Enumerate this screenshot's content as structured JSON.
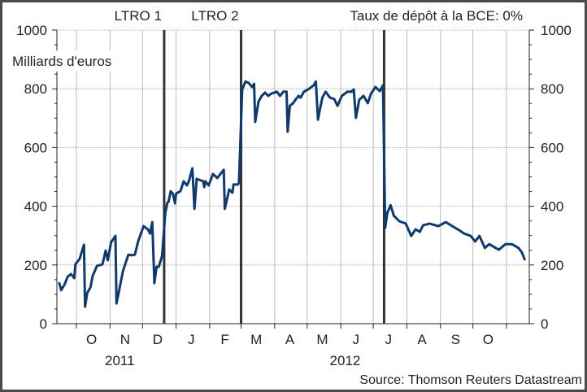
{
  "chart_data": {
    "type": "line",
    "title": "",
    "ylabel": "Milliards d'euros",
    "source": "Source: Thomson Reuters Datastream",
    "ylim": [
      0,
      1000
    ],
    "yticks": [
      0,
      200,
      400,
      600,
      800,
      1000
    ],
    "xlim": [
      "2011-09-13",
      "2012-11-22"
    ],
    "grid": true,
    "colors": {
      "series": "#0f3a6b",
      "event_lines": "#333333"
    },
    "month_labels": [
      {
        "label": "O",
        "month": "2011-10"
      },
      {
        "label": "N",
        "month": "2011-11"
      },
      {
        "label": "D",
        "month": "2011-12"
      },
      {
        "label": "J",
        "month": "2012-01"
      },
      {
        "label": "F",
        "month": "2012-02"
      },
      {
        "label": "M",
        "month": "2012-03"
      },
      {
        "label": "A",
        "month": "2012-04"
      },
      {
        "label": "M",
        "month": "2012-05"
      },
      {
        "label": "J",
        "month": "2012-06"
      },
      {
        "label": "J",
        "month": "2012-07"
      },
      {
        "label": "A",
        "month": "2012-08"
      },
      {
        "label": "S",
        "month": "2012-09"
      },
      {
        "label": "O",
        "month": "2012-10"
      }
    ],
    "year_labels": [
      {
        "label": "2011",
        "date": "2011-11-10"
      },
      {
        "label": "2012",
        "date": "2012-06-05"
      }
    ],
    "events": [
      {
        "label": "LTRO 1",
        "date": "2011-12-21"
      },
      {
        "label": "LTRO 2",
        "date": "2012-03-01"
      },
      {
        "label": "Taux de dépôt à la BCE: 0%",
        "date": "2012-07-11"
      }
    ],
    "series": [
      {
        "points": [
          [
            "2011-09-15",
            141
          ],
          [
            "2011-09-17",
            114
          ],
          [
            "2011-09-20",
            133
          ],
          [
            "2011-09-23",
            160
          ],
          [
            "2011-09-26",
            169
          ],
          [
            "2011-09-29",
            155
          ],
          [
            "2011-09-30",
            202
          ],
          [
            "2011-10-04",
            221
          ],
          [
            "2011-10-08",
            269
          ],
          [
            "2011-10-09",
            58
          ],
          [
            "2011-10-11",
            105
          ],
          [
            "2011-10-14",
            124
          ],
          [
            "2011-10-16",
            163
          ],
          [
            "2011-10-20",
            197
          ],
          [
            "2011-10-25",
            202
          ],
          [
            "2011-10-28",
            249
          ],
          [
            "2011-10-30",
            216
          ],
          [
            "2011-11-02",
            277
          ],
          [
            "2011-11-06",
            299
          ],
          [
            "2011-11-07",
            69
          ],
          [
            "2011-11-10",
            124
          ],
          [
            "2011-11-13",
            180
          ],
          [
            "2011-11-18",
            235
          ],
          [
            "2011-11-21",
            233
          ],
          [
            "2011-11-24",
            235
          ],
          [
            "2011-11-27",
            280
          ],
          [
            "2011-12-02",
            332
          ],
          [
            "2011-12-06",
            321
          ],
          [
            "2011-12-08",
            307
          ],
          [
            "2011-12-10",
            346
          ],
          [
            "2011-12-12",
            138
          ],
          [
            "2011-12-14",
            194
          ],
          [
            "2011-12-16",
            194
          ],
          [
            "2011-12-19",
            230
          ],
          [
            "2011-12-22",
            377
          ],
          [
            "2011-12-24",
            413
          ],
          [
            "2011-12-25",
            415
          ],
          [
            "2011-12-27",
            451
          ],
          [
            "2011-12-29",
            443
          ],
          [
            "2011-12-31",
            410
          ],
          [
            "2012-01-01",
            443
          ],
          [
            "2012-01-05",
            451
          ],
          [
            "2012-01-08",
            485
          ],
          [
            "2012-01-11",
            471
          ],
          [
            "2012-01-13",
            488
          ],
          [
            "2012-01-16",
            529
          ],
          [
            "2012-01-18",
            391
          ],
          [
            "2012-01-20",
            493
          ],
          [
            "2012-01-26",
            485
          ],
          [
            "2012-01-27",
            465
          ],
          [
            "2012-01-28",
            485
          ],
          [
            "2012-01-31",
            471
          ],
          [
            "2012-02-04",
            510
          ],
          [
            "2012-02-08",
            496
          ],
          [
            "2012-02-14",
            524
          ],
          [
            "2012-02-15",
            391
          ],
          [
            "2012-02-19",
            457
          ],
          [
            "2012-02-22",
            446
          ],
          [
            "2012-02-23",
            474
          ],
          [
            "2012-02-27",
            474
          ],
          [
            "2012-02-28",
            479
          ],
          [
            "2012-03-02",
            798
          ],
          [
            "2012-03-05",
            825
          ],
          [
            "2012-03-08",
            820
          ],
          [
            "2012-03-11",
            806
          ],
          [
            "2012-03-13",
            817
          ],
          [
            "2012-03-14",
            687
          ],
          [
            "2012-03-17",
            756
          ],
          [
            "2012-03-20",
            776
          ],
          [
            "2012-03-23",
            787
          ],
          [
            "2012-03-26",
            776
          ],
          [
            "2012-03-29",
            784
          ],
          [
            "2012-04-03",
            790
          ],
          [
            "2012-04-06",
            776
          ],
          [
            "2012-04-09",
            790
          ],
          [
            "2012-04-12",
            790
          ],
          [
            "2012-04-13",
            654
          ],
          [
            "2012-04-15",
            742
          ],
          [
            "2012-04-18",
            751
          ],
          [
            "2012-04-20",
            762
          ],
          [
            "2012-04-23",
            776
          ],
          [
            "2012-04-25",
            770
          ],
          [
            "2012-04-28",
            790
          ],
          [
            "2012-05-02",
            798
          ],
          [
            "2012-05-07",
            812
          ],
          [
            "2012-05-09",
            825
          ],
          [
            "2012-05-11",
            695
          ],
          [
            "2012-05-13",
            734
          ],
          [
            "2012-05-15",
            770
          ],
          [
            "2012-05-18",
            790
          ],
          [
            "2012-05-22",
            770
          ],
          [
            "2012-05-26",
            765
          ],
          [
            "2012-05-29",
            742
          ],
          [
            "2012-06-02",
            776
          ],
          [
            "2012-06-07",
            790
          ],
          [
            "2012-06-11",
            790
          ],
          [
            "2012-06-13",
            798
          ],
          [
            "2012-06-15",
            701
          ],
          [
            "2012-06-18",
            762
          ],
          [
            "2012-06-22",
            776
          ],
          [
            "2012-06-26",
            751
          ],
          [
            "2012-06-29",
            784
          ],
          [
            "2012-07-03",
            806
          ],
          [
            "2012-07-07",
            792
          ],
          [
            "2012-07-10",
            812
          ],
          [
            "2012-07-12",
            327
          ],
          [
            "2012-07-14",
            377
          ],
          [
            "2012-07-17",
            404
          ],
          [
            "2012-07-20",
            368
          ],
          [
            "2012-07-25",
            349
          ],
          [
            "2012-07-31",
            341
          ],
          [
            "2012-08-05",
            299
          ],
          [
            "2012-08-09",
            321
          ],
          [
            "2012-08-13",
            313
          ],
          [
            "2012-08-16",
            335
          ],
          [
            "2012-08-22",
            341
          ],
          [
            "2012-08-30",
            332
          ],
          [
            "2012-09-06",
            346
          ],
          [
            "2012-09-12",
            332
          ],
          [
            "2012-09-18",
            319
          ],
          [
            "2012-09-23",
            307
          ],
          [
            "2012-09-29",
            299
          ],
          [
            "2012-10-03",
            280
          ],
          [
            "2012-10-07",
            299
          ],
          [
            "2012-10-12",
            258
          ],
          [
            "2012-10-16",
            271
          ],
          [
            "2012-10-22",
            258
          ],
          [
            "2012-10-25",
            252
          ],
          [
            "2012-10-31",
            271
          ],
          [
            "2012-11-06",
            271
          ],
          [
            "2012-11-12",
            258
          ],
          [
            "2012-11-15",
            244
          ],
          [
            "2012-11-18",
            216
          ]
        ]
      }
    ]
  }
}
